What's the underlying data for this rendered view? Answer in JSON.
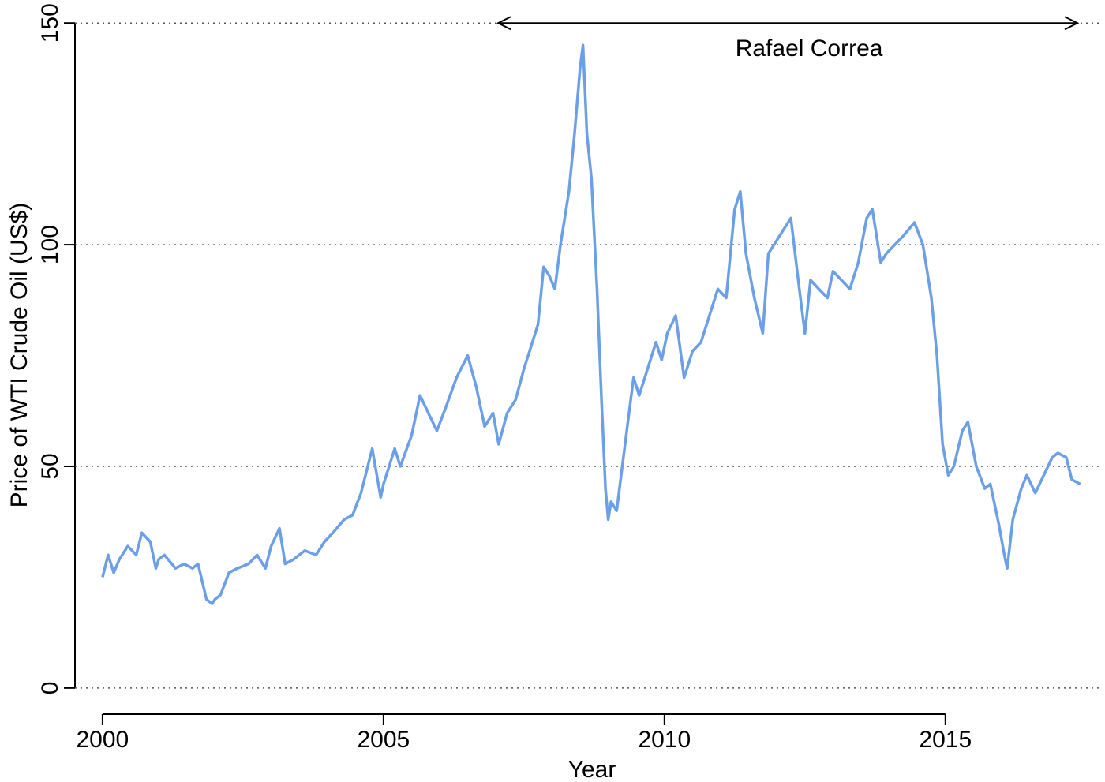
{
  "chart_data": {
    "type": "line",
    "x_label": "Year",
    "y_label": "Price of WTI Crude Oil (US$)",
    "x": [
      2000.0,
      2000.1,
      2000.2,
      2000.3,
      2000.45,
      2000.6,
      2000.7,
      2000.85,
      2000.95,
      2001.0,
      2001.1,
      2001.3,
      2001.45,
      2001.6,
      2001.7,
      2001.85,
      2001.95,
      2002.0,
      2002.1,
      2002.25,
      2002.4,
      2002.6,
      2002.75,
      2002.9,
      2003.0,
      2003.15,
      2003.25,
      2003.4,
      2003.6,
      2003.8,
      2003.95,
      2004.1,
      2004.3,
      2004.45,
      2004.6,
      2004.8,
      2004.95,
      2005.0,
      2005.2,
      2005.3,
      2005.5,
      2005.65,
      2005.8,
      2005.95,
      2006.1,
      2006.3,
      2006.5,
      2006.65,
      2006.8,
      2006.95,
      2007.05,
      2007.2,
      2007.35,
      2007.5,
      2007.6,
      2007.75,
      2007.85,
      2007.95,
      2008.05,
      2008.15,
      2008.3,
      2008.4,
      2008.5,
      2008.55,
      2008.62,
      2008.7,
      2008.8,
      2008.88,
      2008.95,
      2009.0,
      2009.05,
      2009.15,
      2009.25,
      2009.35,
      2009.45,
      2009.55,
      2009.7,
      2009.85,
      2009.95,
      2010.05,
      2010.2,
      2010.35,
      2010.5,
      2010.65,
      2010.8,
      2010.95,
      2011.1,
      2011.25,
      2011.35,
      2011.45,
      2011.6,
      2011.75,
      2011.85,
      2011.95,
      2012.1,
      2012.25,
      2012.4,
      2012.5,
      2012.6,
      2012.75,
      2012.9,
      2013.0,
      2013.15,
      2013.3,
      2013.45,
      2013.6,
      2013.7,
      2013.85,
      2013.95,
      2014.1,
      2014.25,
      2014.45,
      2014.6,
      2014.75,
      2014.85,
      2014.95,
      2015.05,
      2015.15,
      2015.3,
      2015.4,
      2015.55,
      2015.7,
      2015.8,
      2015.95,
      2016.05,
      2016.1,
      2016.2,
      2016.35,
      2016.45,
      2016.6,
      2016.75,
      2016.9,
      2017.0,
      2017.15,
      2017.25,
      2017.4
    ],
    "series": [
      {
        "color": "#6b9fe8",
        "values": [
          25,
          30,
          26,
          29,
          32,
          30,
          35,
          33,
          27,
          29,
          30,
          27,
          28,
          27,
          28,
          20,
          19,
          20,
          21,
          26,
          27,
          28,
          30,
          27,
          32,
          36,
          28,
          29,
          31,
          30,
          33,
          35,
          38,
          39,
          44,
          54,
          43,
          46,
          54,
          50,
          57,
          66,
          62,
          58,
          63,
          70,
          75,
          68,
          59,
          62,
          55,
          62,
          65,
          72,
          76,
          82,
          95,
          93,
          90,
          100,
          112,
          125,
          140,
          145,
          125,
          115,
          90,
          65,
          45,
          38,
          42,
          40,
          50,
          60,
          70,
          66,
          72,
          78,
          74,
          80,
          84,
          70,
          76,
          78,
          84,
          90,
          88,
          108,
          112,
          98,
          88,
          80,
          98,
          100,
          103,
          106,
          90,
          80,
          92,
          90,
          88,
          94,
          92,
          90,
          96,
          106,
          108,
          96,
          98,
          100,
          102,
          105,
          100,
          88,
          75,
          55,
          48,
          50,
          58,
          60,
          50,
          45,
          46,
          37,
          30,
          27,
          38,
          45,
          48,
          44,
          48,
          52,
          53,
          52,
          47,
          46
        ]
      }
    ],
    "xlim": [
      1999.51,
      2017.77
    ],
    "ylim": [
      -5.9,
      155.2
    ],
    "xticks": [
      2000,
      2005,
      2010,
      2015
    ],
    "yticks": [
      0,
      50,
      100,
      150
    ],
    "grid": true,
    "annotation": {
      "text": "Rafael Correa",
      "x": [
        2007.04,
        2017.35
      ],
      "y": 150
    }
  }
}
